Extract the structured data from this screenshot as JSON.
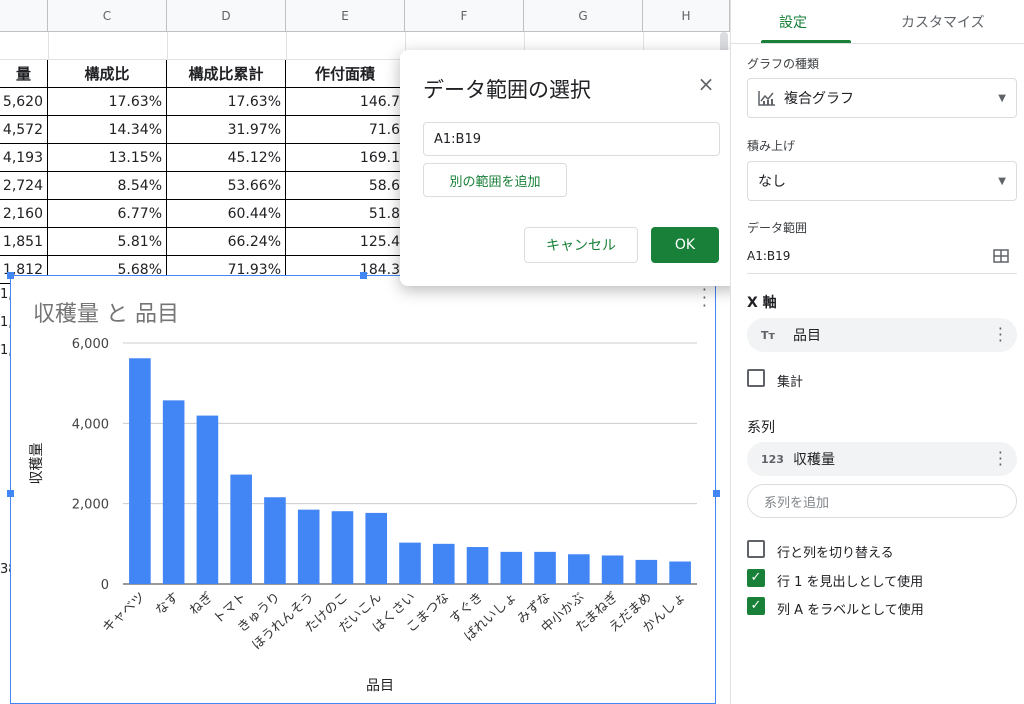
{
  "sheet": {
    "columns": [
      {
        "letter": "C"
      },
      {
        "letter": "D"
      },
      {
        "letter": "E"
      },
      {
        "letter": "F"
      },
      {
        "letter": "G"
      },
      {
        "letter": "H"
      }
    ],
    "headers": [
      "量",
      "構成比",
      "構成比累計",
      "作付面積"
    ],
    "rows": [
      [
        "5,620",
        "17.63%",
        "17.63%",
        "146.7"
      ],
      [
        "4,572",
        "14.34%",
        "31.97%",
        "71.6"
      ],
      [
        "4,193",
        "13.15%",
        "45.12%",
        "169.1"
      ],
      [
        "2,724",
        "8.54%",
        "53.66%",
        "58.6"
      ],
      [
        "2,160",
        "6.77%",
        "60.44%",
        "51.8"
      ],
      [
        "1,851",
        "5.81%",
        "66.24%",
        "125.4"
      ],
      [
        "1,812",
        "5.68%",
        "71.93%",
        "184.3"
      ]
    ],
    "partial_cells": [
      "1,",
      "1,",
      "1,",
      "38"
    ]
  },
  "chart_data": {
    "type": "bar",
    "title": "収穫量 と 品目",
    "xlabel": "品目",
    "ylabel": "収穫量",
    "ylim": [
      0,
      6000
    ],
    "yticks": [
      "0",
      "2,000",
      "4,000",
      "6,000"
    ],
    "grid": true,
    "color": "#4285f4",
    "categories": [
      "キャベツ",
      "なす",
      "ねぎ",
      "トマト",
      "きゅうり",
      "ほうれんそう",
      "たけのこ",
      "だいこん",
      "はくさい",
      "こまつな",
      "すぐき",
      "ばれいしょ",
      "みずな",
      "中小かぶ",
      "たまねぎ",
      "えだまめ",
      "かんしょ"
    ],
    "series": [
      {
        "values": [
          5620,
          4572,
          4193,
          2724,
          2160,
          1851,
          1812,
          1770,
          1030,
          1000,
          920,
          800,
          800,
          740,
          710,
          600,
          560
        ]
      }
    ]
  },
  "dialog": {
    "title": "データ範囲の選択",
    "close_icon": "×",
    "range_value": "A1:B19",
    "add_range_label": "別の範囲を追加",
    "cancel_label": "キャンセル",
    "ok_label": "OK"
  },
  "panel": {
    "tabs": {
      "setup": "設定",
      "customize": "カスタマイズ"
    },
    "chart_type_label": "グラフの種類",
    "chart_type_value": "複合グラフ",
    "stacking_label": "積み上げ",
    "stacking_value": "なし",
    "data_range_label": "データ範囲",
    "data_range_value": "A1:B19",
    "x_axis_label": "X 軸",
    "x_axis_chip_icon": "Tт",
    "x_axis_chip": "品目",
    "aggregate_label": "集計",
    "series_label": "系列",
    "series_chip_icon": "123",
    "series_chip": "収穫量",
    "add_series_placeholder": "系列を追加",
    "switch_rows_cols": "行と列を切り替える",
    "use_row1_header": "行 1 を見出しとして使用",
    "use_colA_labels": "列 A をラベルとして使用"
  },
  "colors": {
    "accent": "#188038",
    "bar": "#4285f4"
  }
}
